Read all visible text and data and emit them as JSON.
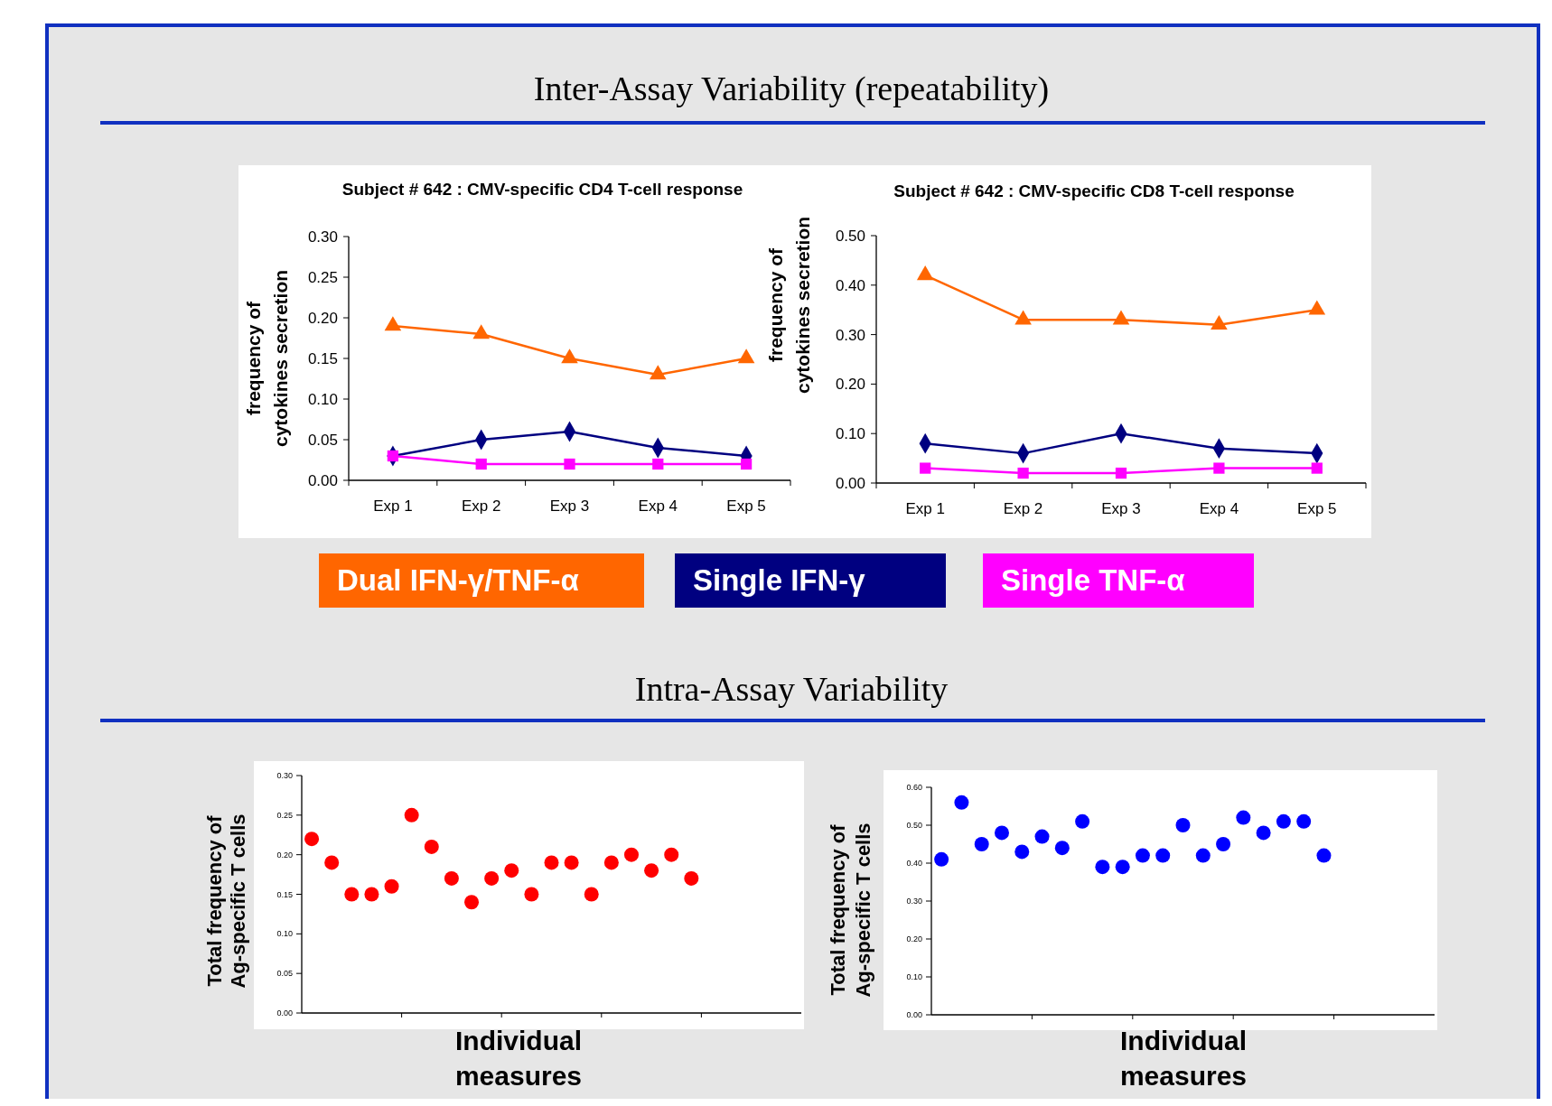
{
  "chart_data": [
    {
      "type": "line",
      "title": "Subject # 642 : CMV-specific CD4 T-cell response",
      "ylabel": "frequency of cytokines secretion",
      "annotations": [
        "Inter-Assay Variability (repeatability)"
      ],
      "categories": [
        "Exp 1",
        "Exp 2",
        "Exp 3",
        "Exp 4",
        "Exp 5"
      ],
      "series": [
        {
          "name": "Dual IFN-γ/TNF-α",
          "color": "#ff6600",
          "marker": "triangle",
          "values": [
            0.19,
            0.18,
            0.15,
            0.13,
            0.15
          ]
        },
        {
          "name": "Single IFN-γ",
          "color": "#000080",
          "marker": "diamond",
          "values": [
            0.03,
            0.05,
            0.06,
            0.04,
            0.03
          ]
        },
        {
          "name": "Single TNF-α",
          "color": "#ff00ff",
          "marker": "square",
          "values": [
            0.03,
            0.02,
            0.02,
            0.02,
            0.02
          ]
        }
      ],
      "ylim": [
        0,
        0.3
      ],
      "yticks": [
        {
          "value": 0,
          "label": "0.00"
        },
        {
          "value": 0.05,
          "label": "0.05"
        },
        {
          "value": 0.1,
          "label": "0.10"
        },
        {
          "value": 0.15,
          "label": "0.15"
        },
        {
          "value": 0.2,
          "label": "0.20"
        },
        {
          "value": 0.25,
          "label": "0.25"
        },
        {
          "value": 0.3,
          "label": "0.30"
        }
      ],
      "legend": "bottom"
    },
    {
      "type": "line",
      "title": "Subject # 642 : CMV-specific CD8 T-cell response",
      "ylabel": "frequency of cytokines secretion",
      "categories": [
        "Exp 1",
        "Exp 2",
        "Exp 3",
        "Exp 4",
        "Exp 5"
      ],
      "series": [
        {
          "color": "#ff6600",
          "marker": "triangle",
          "values": [
            0.42,
            0.33,
            0.33,
            0.32,
            0.35
          ]
        },
        {
          "color": "#000080",
          "marker": "diamond",
          "values": [
            0.08,
            0.06,
            0.1,
            0.07,
            0.06
          ]
        },
        {
          "color": "#ff00ff",
          "marker": "square",
          "values": [
            0.03,
            0.02,
            0.02,
            0.03,
            0.03
          ]
        }
      ],
      "ylim": [
        0,
        0.5
      ],
      "yticks": [
        {
          "value": 0,
          "label": "0.00"
        },
        {
          "value": 0.1,
          "label": "0.10"
        },
        {
          "value": 0.2,
          "label": "0.20"
        },
        {
          "value": 0.3,
          "label": "0.30"
        },
        {
          "value": 0.4,
          "label": "0.40"
        },
        {
          "value": 0.5,
          "label": "0.50"
        }
      ]
    },
    {
      "type": "scatter",
      "xlabel": "Individual measures",
      "ylabel": "Total frequency of Ag-specific T cells",
      "annotations": [
        "Intra-Assay Variability"
      ],
      "marker": "circle",
      "tick_labels": "y",
      "categories": [
        null,
        null,
        null,
        null,
        null,
        null,
        null,
        null,
        null,
        null,
        null,
        null,
        null,
        null,
        null,
        null,
        null,
        null,
        null,
        null,
        null,
        null,
        null,
        null,
        null
      ],
      "series": [
        {
          "color": "#ff0000",
          "values": [
            0.22,
            0.19,
            0.15,
            0.15,
            0.16,
            0.25,
            0.21,
            0.17,
            0.14,
            0.17,
            0.18,
            0.15,
            0.19,
            0.19,
            0.15,
            0.19,
            0.2,
            0.18,
            0.2,
            0.17,
            null,
            null,
            null,
            null,
            null
          ]
        }
      ],
      "ylim": [
        0,
        0.3
      ],
      "yticks": [
        {
          "value": 0,
          "label": "0.00"
        },
        {
          "value": 0.05,
          "label": "0.05"
        },
        {
          "value": 0.1,
          "label": "0.10"
        },
        {
          "value": 0.15,
          "label": "0.15"
        },
        {
          "value": 0.2,
          "label": "0.20"
        },
        {
          "value": 0.25,
          "label": "0.25"
        },
        {
          "value": 0.3,
          "label": "0.30"
        }
      ]
    },
    {
      "type": "scatter",
      "xlabel": "Individual measures",
      "ylabel": "Total frequency of Ag-specific T cells",
      "marker": "circle",
      "tick_labels": "y",
      "categories": [
        null,
        null,
        null,
        null,
        null,
        null,
        null,
        null,
        null,
        null,
        null,
        null,
        null,
        null,
        null,
        null,
        null,
        null,
        null,
        null,
        null,
        null,
        null,
        null,
        null
      ],
      "series": [
        {
          "color": "#0000ff",
          "values": [
            0.41,
            0.56,
            0.45,
            0.48,
            0.43,
            0.47,
            0.44,
            0.51,
            0.39,
            0.39,
            0.42,
            0.42,
            0.5,
            0.42,
            0.45,
            0.52,
            0.48,
            0.51,
            0.51,
            0.42,
            null,
            null,
            null,
            null,
            null
          ]
        }
      ],
      "ylim": [
        0,
        0.6
      ],
      "yticks": [
        {
          "value": 0,
          "label": "0.00"
        },
        {
          "value": 0.1,
          "label": "0.10"
        },
        {
          "value": 0.2,
          "label": "0.20"
        },
        {
          "value": 0.3,
          "label": "0.30"
        },
        {
          "value": 0.4,
          "label": "0.40"
        },
        {
          "value": 0.5,
          "label": "0.50"
        },
        {
          "value": 0.6,
          "label": "0.60"
        }
      ]
    }
  ]
}
